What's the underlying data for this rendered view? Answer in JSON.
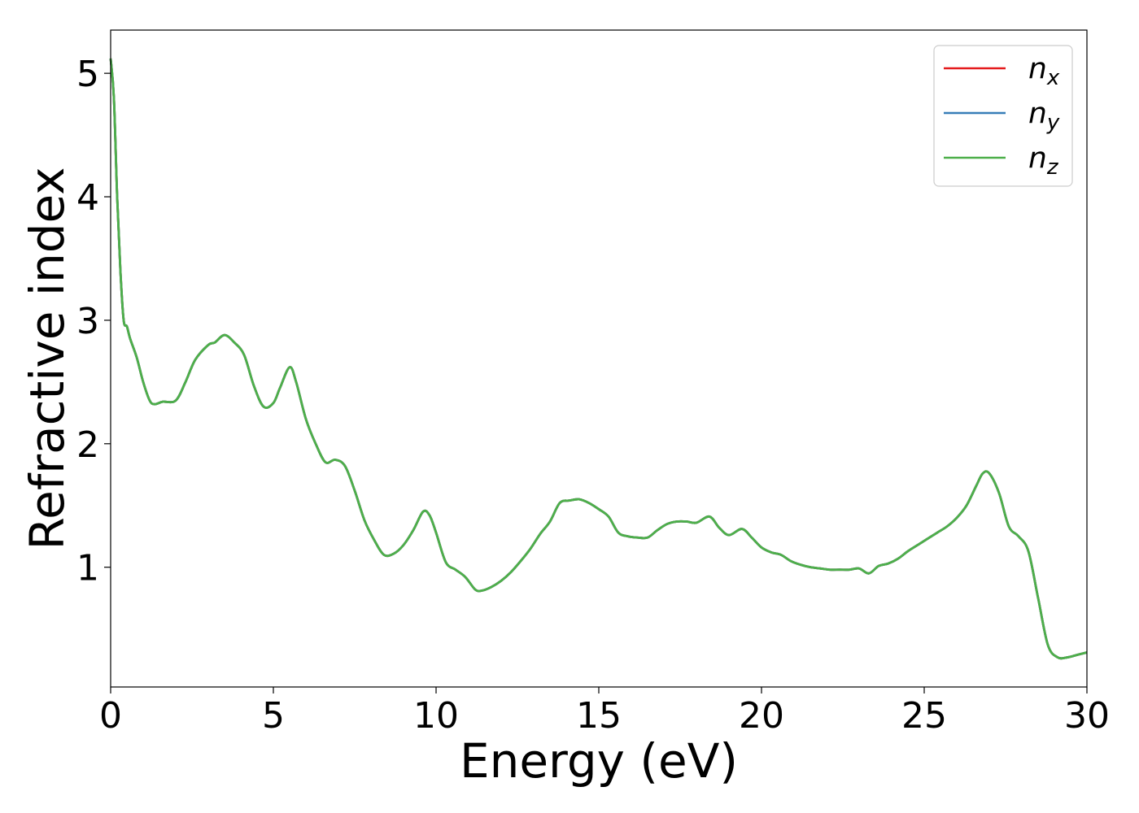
{
  "chart_data": {
    "type": "line",
    "title": "",
    "xlabel": "Energy (eV)",
    "ylabel": "Refractive index",
    "xlim": [
      0,
      30
    ],
    "ylim": [
      0.03,
      5.35
    ],
    "xticks": [
      0,
      5,
      10,
      15,
      20,
      25,
      30
    ],
    "xtick_labels": [
      "0",
      "5",
      "10",
      "15",
      "20",
      "25",
      "30"
    ],
    "yticks": [
      1,
      2,
      3,
      4,
      5
    ],
    "ytick_labels": [
      "1",
      "2",
      "3",
      "4",
      "5"
    ],
    "grid": false,
    "legend": {
      "position": "top-right",
      "entries": [
        {
          "base": "n",
          "sub": "x",
          "color": "#e41a1c"
        },
        {
          "base": "n",
          "sub": "y",
          "color": "#377eb8"
        },
        {
          "base": "n",
          "sub": "z",
          "color": "#4daf4a"
        }
      ]
    },
    "x": [
      0,
      0.1,
      0.2,
      0.3,
      0.4,
      0.5,
      0.6,
      0.8,
      1.0,
      1.2,
      1.35,
      1.6,
      2.0,
      2.3,
      2.6,
      3.0,
      3.2,
      3.5,
      3.8,
      4.1,
      4.4,
      4.7,
      5.0,
      5.2,
      5.5,
      5.7,
      6.0,
      6.3,
      6.6,
      6.9,
      7.2,
      7.5,
      7.8,
      8.1,
      8.4,
      8.7,
      9.0,
      9.3,
      9.6,
      9.8,
      10.0,
      10.3,
      10.6,
      10.9,
      11.2,
      11.4,
      11.7,
      12.0,
      12.3,
      12.6,
      12.9,
      13.2,
      13.5,
      13.8,
      14.1,
      14.4,
      14.7,
      15.0,
      15.3,
      15.6,
      15.9,
      16.2,
      16.5,
      16.8,
      17.1,
      17.4,
      17.7,
      18.0,
      18.4,
      18.7,
      19.0,
      19.4,
      19.7,
      20.0,
      20.3,
      20.6,
      20.9,
      21.2,
      21.5,
      21.8,
      22.1,
      22.4,
      22.7,
      23.0,
      23.3,
      23.6,
      23.9,
      24.2,
      24.5,
      24.8,
      25.1,
      25.4,
      25.7,
      26.0,
      26.3,
      26.6,
      26.8,
      27.0,
      27.3,
      27.6,
      27.9,
      28.2,
      28.5,
      28.8,
      29.1,
      29.4,
      29.7,
      30.0
    ],
    "series": [
      {
        "name": "nx",
        "color": "#e41a1c",
        "values": [
          5.12,
          4.8,
          4.0,
          3.4,
          3.0,
          2.95,
          2.85,
          2.7,
          2.5,
          2.35,
          2.32,
          2.34,
          2.35,
          2.5,
          2.68,
          2.8,
          2.82,
          2.88,
          2.82,
          2.72,
          2.47,
          2.3,
          2.33,
          2.45,
          2.62,
          2.5,
          2.2,
          2.0,
          1.85,
          1.87,
          1.82,
          1.62,
          1.38,
          1.22,
          1.1,
          1.11,
          1.18,
          1.3,
          1.45,
          1.42,
          1.28,
          1.04,
          0.98,
          0.92,
          0.82,
          0.81,
          0.84,
          0.89,
          0.96,
          1.05,
          1.15,
          1.27,
          1.37,
          1.52,
          1.54,
          1.55,
          1.52,
          1.47,
          1.41,
          1.28,
          1.25,
          1.24,
          1.24,
          1.3,
          1.35,
          1.37,
          1.37,
          1.36,
          1.41,
          1.32,
          1.26,
          1.31,
          1.24,
          1.16,
          1.12,
          1.1,
          1.05,
          1.02,
          1.0,
          0.99,
          0.98,
          0.98,
          0.98,
          0.99,
          0.95,
          1.01,
          1.03,
          1.07,
          1.13,
          1.18,
          1.23,
          1.28,
          1.33,
          1.4,
          1.5,
          1.66,
          1.76,
          1.76,
          1.6,
          1.33,
          1.25,
          1.13,
          0.75,
          0.37,
          0.27,
          0.27,
          0.29,
          0.31
        ]
      },
      {
        "name": "ny",
        "color": "#377eb8",
        "values": [
          5.12,
          4.8,
          4.0,
          3.4,
          3.0,
          2.95,
          2.85,
          2.7,
          2.5,
          2.35,
          2.32,
          2.34,
          2.35,
          2.5,
          2.68,
          2.8,
          2.82,
          2.88,
          2.82,
          2.72,
          2.47,
          2.3,
          2.33,
          2.45,
          2.62,
          2.5,
          2.2,
          2.0,
          1.85,
          1.87,
          1.82,
          1.62,
          1.38,
          1.22,
          1.1,
          1.11,
          1.18,
          1.3,
          1.45,
          1.42,
          1.28,
          1.04,
          0.98,
          0.92,
          0.82,
          0.81,
          0.84,
          0.89,
          0.96,
          1.05,
          1.15,
          1.27,
          1.37,
          1.52,
          1.54,
          1.55,
          1.52,
          1.47,
          1.41,
          1.28,
          1.25,
          1.24,
          1.24,
          1.3,
          1.35,
          1.37,
          1.37,
          1.36,
          1.41,
          1.32,
          1.26,
          1.31,
          1.24,
          1.16,
          1.12,
          1.1,
          1.05,
          1.02,
          1.0,
          0.99,
          0.98,
          0.98,
          0.98,
          0.99,
          0.95,
          1.01,
          1.03,
          1.07,
          1.13,
          1.18,
          1.23,
          1.28,
          1.33,
          1.4,
          1.5,
          1.66,
          1.76,
          1.76,
          1.6,
          1.33,
          1.25,
          1.13,
          0.75,
          0.37,
          0.27,
          0.27,
          0.29,
          0.31
        ]
      },
      {
        "name": "nz",
        "color": "#4daf4a",
        "values": [
          5.12,
          4.8,
          4.0,
          3.4,
          3.0,
          2.95,
          2.85,
          2.7,
          2.5,
          2.35,
          2.32,
          2.34,
          2.35,
          2.5,
          2.68,
          2.8,
          2.82,
          2.88,
          2.82,
          2.72,
          2.47,
          2.3,
          2.33,
          2.45,
          2.62,
          2.5,
          2.2,
          2.0,
          1.85,
          1.87,
          1.82,
          1.62,
          1.38,
          1.22,
          1.1,
          1.11,
          1.18,
          1.3,
          1.45,
          1.42,
          1.28,
          1.04,
          0.98,
          0.92,
          0.82,
          0.81,
          0.84,
          0.89,
          0.96,
          1.05,
          1.15,
          1.27,
          1.37,
          1.52,
          1.54,
          1.55,
          1.52,
          1.47,
          1.41,
          1.28,
          1.25,
          1.24,
          1.24,
          1.3,
          1.35,
          1.37,
          1.37,
          1.36,
          1.41,
          1.32,
          1.26,
          1.31,
          1.24,
          1.16,
          1.12,
          1.1,
          1.05,
          1.02,
          1.0,
          0.99,
          0.98,
          0.98,
          0.98,
          0.99,
          0.95,
          1.01,
          1.03,
          1.07,
          1.13,
          1.18,
          1.23,
          1.28,
          1.33,
          1.4,
          1.5,
          1.66,
          1.76,
          1.76,
          1.6,
          1.33,
          1.25,
          1.13,
          0.75,
          0.37,
          0.27,
          0.27,
          0.29,
          0.31
        ]
      }
    ]
  }
}
